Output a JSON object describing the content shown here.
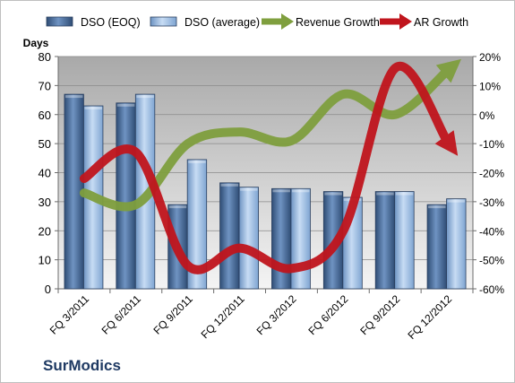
{
  "chart_data": {
    "type": "bar",
    "title": "",
    "company": "SurModics",
    "categories": [
      "FQ 3/2011",
      "FQ 6/2011",
      "FQ 9/2011",
      "FQ 12/2011",
      "FQ 3/2012",
      "FQ 6/2012",
      "FQ 9/2012",
      "FQ 12/2012"
    ],
    "y_left": {
      "label": "Days",
      "min": 0,
      "max": 80,
      "step": 10
    },
    "y_right": {
      "label": "",
      "min": -60,
      "max": 20,
      "step": 10,
      "unit": "%"
    },
    "grid": true,
    "legend_position": "top",
    "series": [
      {
        "name": "DSO (EOQ)",
        "type": "bar",
        "axis": "left",
        "color": "#4a6f9f",
        "values": [
          67,
          64,
          29,
          36.5,
          34.5,
          33.5,
          33.5,
          29
        ]
      },
      {
        "name": "DSO (average)",
        "type": "bar",
        "axis": "left",
        "color": "#a3c3e8",
        "values": [
          63,
          67,
          44.5,
          35,
          34.5,
          31.5,
          33.5,
          31
        ]
      },
      {
        "name": "Revenue Growth",
        "type": "line",
        "axis": "right",
        "unit": "%",
        "color": "#7f9f3e",
        "values": [
          -27,
          -31,
          -10,
          -6,
          -9,
          7,
          0,
          15
        ]
      },
      {
        "name": "AR Growth",
        "type": "line",
        "axis": "right",
        "unit": "%",
        "color": "#c0151d",
        "values": [
          -22,
          -13,
          -52,
          -46,
          -53,
          -40,
          16,
          -9
        ]
      }
    ]
  }
}
